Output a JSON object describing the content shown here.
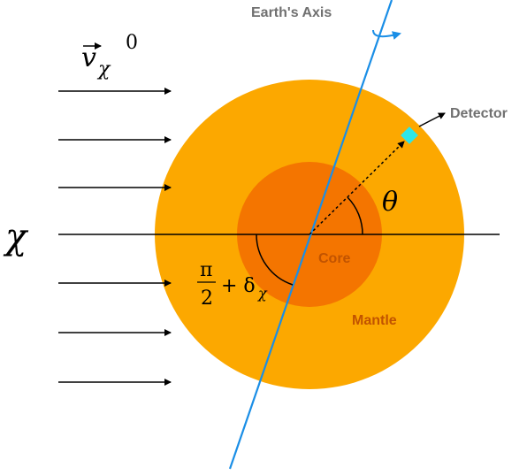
{
  "labels": {
    "earth_axis": "Earth's Axis",
    "detector": "Detector",
    "core": "Core",
    "mantle": "Mantle",
    "chi": "χ",
    "theta": "θ",
    "velocity_base": "v",
    "velocity_sub": "χ",
    "velocity_sup": "0",
    "angle_num": "π",
    "angle_den": "2",
    "angle_rest": "+ δ",
    "angle_sub": "χ"
  },
  "colors": {
    "mantle": "#fca800",
    "core": "#f47500",
    "axis": "#1a8ee6",
    "detector": "#2ee6ea",
    "label_gray": "#707070",
    "layer_text": "#c15300",
    "ink": "#000000"
  }
}
